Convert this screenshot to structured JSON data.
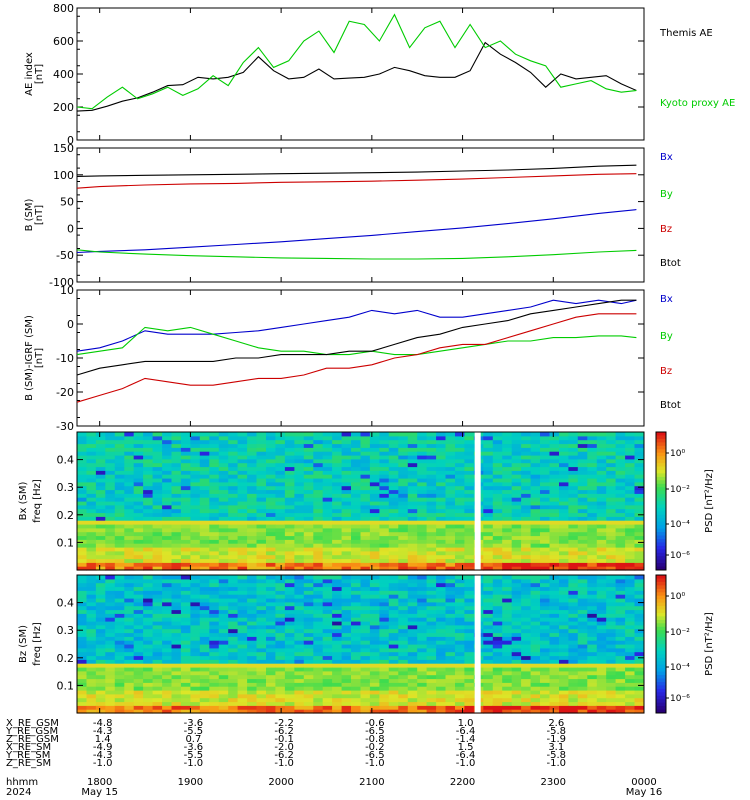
{
  "chart_data": [
    {
      "type": "line",
      "ylabel": "AE index",
      "yunit": "[nT]",
      "ylim": [
        0,
        800
      ],
      "yticks": [
        "0",
        "200",
        "400",
        "600",
        "800"
      ],
      "x": [
        "1745",
        "1755",
        "1805",
        "1815",
        "1825",
        "1835",
        "1845",
        "1855",
        "1905",
        "1915",
        "1925",
        "1935",
        "1945",
        "1955",
        "2005",
        "2015",
        "2025",
        "2035",
        "2045",
        "2055",
        "2105",
        "2115",
        "2125",
        "2135",
        "2145",
        "2155",
        "2205",
        "2215",
        "2225",
        "2235",
        "2245",
        "2255",
        "2305",
        "2315",
        "2325",
        "2335",
        "2345",
        "2355"
      ],
      "series": [
        {
          "name": "Themis AE",
          "color": "#000000",
          "values": [
            175,
            180,
            205,
            235,
            255,
            290,
            330,
            335,
            380,
            370,
            380,
            410,
            505,
            420,
            370,
            380,
            430,
            370,
            375,
            380,
            400,
            440,
            420,
            390,
            380,
            380,
            420,
            590,
            520,
            470,
            410,
            320,
            400,
            370,
            380,
            390,
            340,
            300
          ]
        },
        {
          "name": "Kyoto proxy AE",
          "color": "#00cc00",
          "values": [
            200,
            190,
            260,
            320,
            250,
            280,
            320,
            270,
            310,
            390,
            330,
            470,
            560,
            440,
            480,
            600,
            660,
            530,
            720,
            700,
            600,
            760,
            560,
            680,
            720,
            560,
            700,
            560,
            600,
            520,
            480,
            450,
            320,
            340,
            360,
            310,
            290,
            300
          ]
        }
      ]
    },
    {
      "type": "line",
      "ylabel": "B (SM)",
      "yunit": "[nT]",
      "ylim": [
        -100,
        150
      ],
      "yticks": [
        "-100",
        "-50",
        "0",
        "50",
        "100",
        "150"
      ],
      "x": [
        "1745",
        "1800",
        "1830",
        "1900",
        "1930",
        "2000",
        "2030",
        "2100",
        "2130",
        "2200",
        "2230",
        "2300",
        "2330",
        "2355"
      ],
      "series": [
        {
          "name": "Bx",
          "color": "#0000cc",
          "values": [
            -45,
            -43,
            -40,
            -35,
            -30,
            -25,
            -19,
            -13,
            -6,
            1,
            9,
            18,
            28,
            35
          ]
        },
        {
          "name": "By",
          "color": "#00cc00",
          "values": [
            -40,
            -44,
            -48,
            -51,
            -53,
            -55,
            -56,
            -57,
            -57,
            -56,
            -53,
            -49,
            -44,
            -41
          ]
        },
        {
          "name": "Bz",
          "color": "#cc0000",
          "values": [
            75,
            78,
            81,
            83,
            84,
            86,
            87,
            88,
            90,
            92,
            95,
            98,
            101,
            102
          ]
        },
        {
          "name": "Btot",
          "color": "#000000",
          "values": [
            97,
            98,
            99,
            100,
            101,
            102,
            103,
            104,
            105,
            107,
            109,
            112,
            116,
            118
          ]
        }
      ]
    },
    {
      "type": "line",
      "ylabel": "B (SM)-IGRF (SM)",
      "yunit": "[nT]",
      "ylim": [
        -30,
        10
      ],
      "yticks": [
        "-30",
        "-20",
        "-10",
        "0",
        "10"
      ],
      "x": [
        "1745",
        "1800",
        "1815",
        "1830",
        "1845",
        "1900",
        "1915",
        "1930",
        "1945",
        "2000",
        "2015",
        "2030",
        "2045",
        "2100",
        "2115",
        "2130",
        "2145",
        "2200",
        "2215",
        "2230",
        "2245",
        "2300",
        "2315",
        "2330",
        "2345",
        "2355"
      ],
      "series": [
        {
          "name": "Bx",
          "color": "#0000cc",
          "values": [
            -8,
            -7,
            -5,
            -2,
            -3,
            -3,
            -3,
            -2.5,
            -2,
            -1,
            0,
            1,
            2,
            4,
            3,
            4,
            2,
            2,
            3,
            4,
            5,
            7,
            6,
            7,
            6,
            7
          ]
        },
        {
          "name": "By",
          "color": "#00cc00",
          "values": [
            -9,
            -8,
            -7,
            -1,
            -2,
            -1,
            -3,
            -5,
            -7,
            -8,
            -8,
            -9,
            -9,
            -8,
            -9,
            -9,
            -8,
            -7,
            -6,
            -5,
            -5,
            -4,
            -4,
            -3.5,
            -3.5,
            -4
          ]
        },
        {
          "name": "Bz",
          "color": "#cc0000",
          "values": [
            -23,
            -21,
            -19,
            -16,
            -17,
            -18,
            -18,
            -17,
            -16,
            -16,
            -15,
            -13,
            -13,
            -12,
            -10,
            -9,
            -7,
            -6,
            -6,
            -4,
            -2,
            0,
            2,
            3,
            3,
            3
          ]
        },
        {
          "name": "Btot",
          "color": "#000000",
          "values": [
            -15,
            -13,
            -12,
            -11,
            -11,
            -11,
            -11,
            -10,
            -10,
            -9,
            -9,
            -9,
            -8,
            -8,
            -6,
            -4,
            -3,
            -1,
            0,
            1,
            3,
            4,
            5,
            6,
            7,
            7
          ]
        }
      ]
    },
    {
      "type": "heatmap",
      "ylabel": "Bx (SM)",
      "ylabel2": "freq  [Hz]",
      "ylim": [
        0,
        0.5
      ],
      "yticks": [
        "0.1",
        "0.2",
        "0.3",
        "0.4"
      ],
      "colorbar_label": "PSD [nT²/Hz]",
      "colorbar_ticks": [
        "10⁰",
        "10⁻²",
        "10⁻⁴",
        "10⁻⁶"
      ],
      "data_gap": [
        "2208",
        "2212"
      ]
    },
    {
      "type": "heatmap",
      "ylabel": "Bz (SM)",
      "ylabel2": "freq  [Hz]",
      "ylim": [
        0,
        0.5
      ],
      "yticks": [
        "0.1",
        "0.2",
        "0.3",
        "0.4"
      ],
      "colorbar_label": "PSD [nT²/Hz]",
      "colorbar_ticks": [
        "10⁰",
        "10⁻²",
        "10⁻⁴",
        "10⁻⁶"
      ],
      "data_gap": [
        "2208",
        "2212"
      ]
    }
  ],
  "xaxis": {
    "tick_labels": [
      "1800",
      "1900",
      "2000",
      "2100",
      "2200",
      "2300",
      "0000"
    ],
    "row_labels": [
      "hhmm",
      "2024"
    ],
    "date_labels": [
      "May 15",
      "May 16"
    ]
  },
  "ephemeris": [
    {
      "label": "X_RE_GSM",
      "values": [
        "-4.8",
        "-3.6",
        "-2.2",
        "-0.6",
        "1.0",
        "2.6"
      ]
    },
    {
      "label": "Y_RE_GSM",
      "values": [
        "-4.3",
        "-5.5",
        "-6.2",
        "-6.5",
        "-6.4",
        "-5.8"
      ]
    },
    {
      "label": "Z_RE_GSM",
      "values": [
        "1.4",
        "0.7",
        "-0.1",
        "-0.8",
        "-1.4",
        "-1.9"
      ]
    },
    {
      "label": "X_RE_SM",
      "values": [
        "-4.9",
        "-3.6",
        "-2.0",
        "-0.2",
        "1.5",
        "3.1"
      ]
    },
    {
      "label": "Y_RE_SM",
      "values": [
        "-4.3",
        "-5.5",
        "-6.2",
        "-6.5",
        "-6.4",
        "-5.8"
      ]
    },
    {
      "label": "Z_RE_SM",
      "values": [
        "-1.0",
        "-1.0",
        "-1.0",
        "-1.0",
        "-1.0",
        "-1.0"
      ]
    }
  ]
}
